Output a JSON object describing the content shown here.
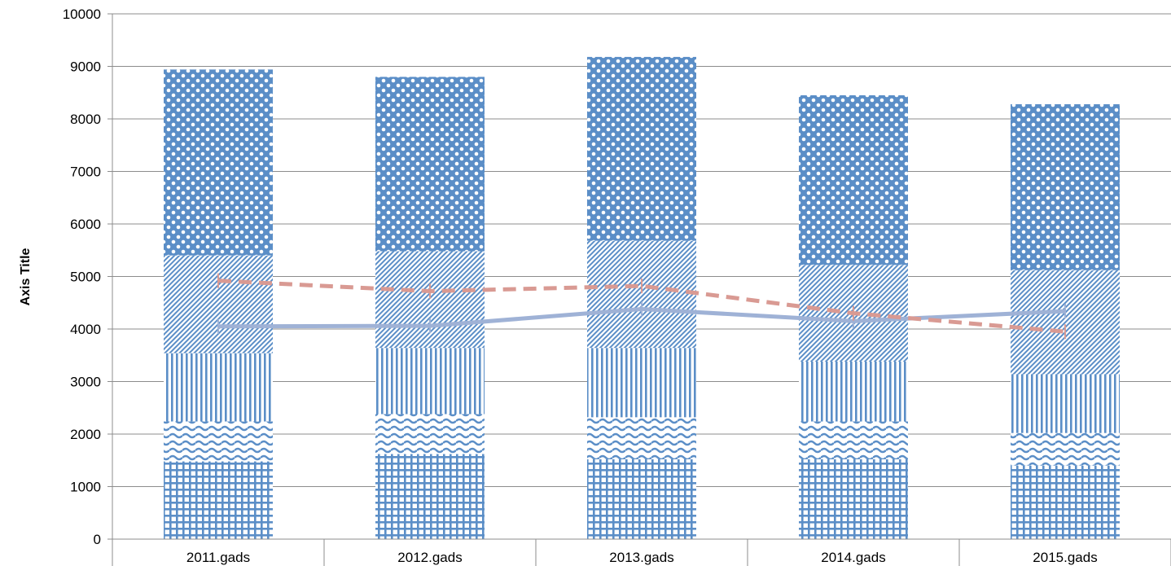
{
  "chart_data": {
    "type": "bar",
    "subtype": "stacked-bar-with-lines",
    "title": "",
    "xlabel": "",
    "ylabel": "Axis Title",
    "ylim": [
      0,
      10000
    ],
    "yticks": [
      "0",
      "1000",
      "2000",
      "3000",
      "4000",
      "5000",
      "6000",
      "7000",
      "8000",
      "9000",
      "10000"
    ],
    "grid": true,
    "legend": "none",
    "categories": [
      "2011.gads",
      "2012.gads",
      "2013.gads",
      "2014.gads",
      "2015.gads"
    ],
    "stacked_series": [
      {
        "values": [
          1480,
          1620,
          1520,
          1520,
          1400
        ],
        "pattern": "grid",
        "color": "#5b8ec7"
      },
      {
        "values": [
          760,
          760,
          800,
          720,
          620
        ],
        "pattern": "wave",
        "color": "#5b8ec7"
      },
      {
        "values": [
          1300,
          1260,
          1320,
          1140,
          1120
        ],
        "pattern": "vertical",
        "color": "#5b8ec7"
      },
      {
        "values": [
          1860,
          1840,
          2040,
          1840,
          1980
        ],
        "pattern": "diagonal",
        "color": "#5b8ec7"
      },
      {
        "values": [
          3540,
          3320,
          3500,
          3230,
          3160
        ],
        "pattern": "dots",
        "color": "#5b8ec7"
      }
    ],
    "line_series": [
      {
        "values": [
          4050,
          4060,
          4380,
          4150,
          4340
        ],
        "color": "#9fb2d6",
        "style": "solid"
      },
      {
        "values": [
          4920,
          4720,
          4820,
          4300,
          3950
        ],
        "color": "#d99a93",
        "style": "dashed"
      }
    ]
  }
}
